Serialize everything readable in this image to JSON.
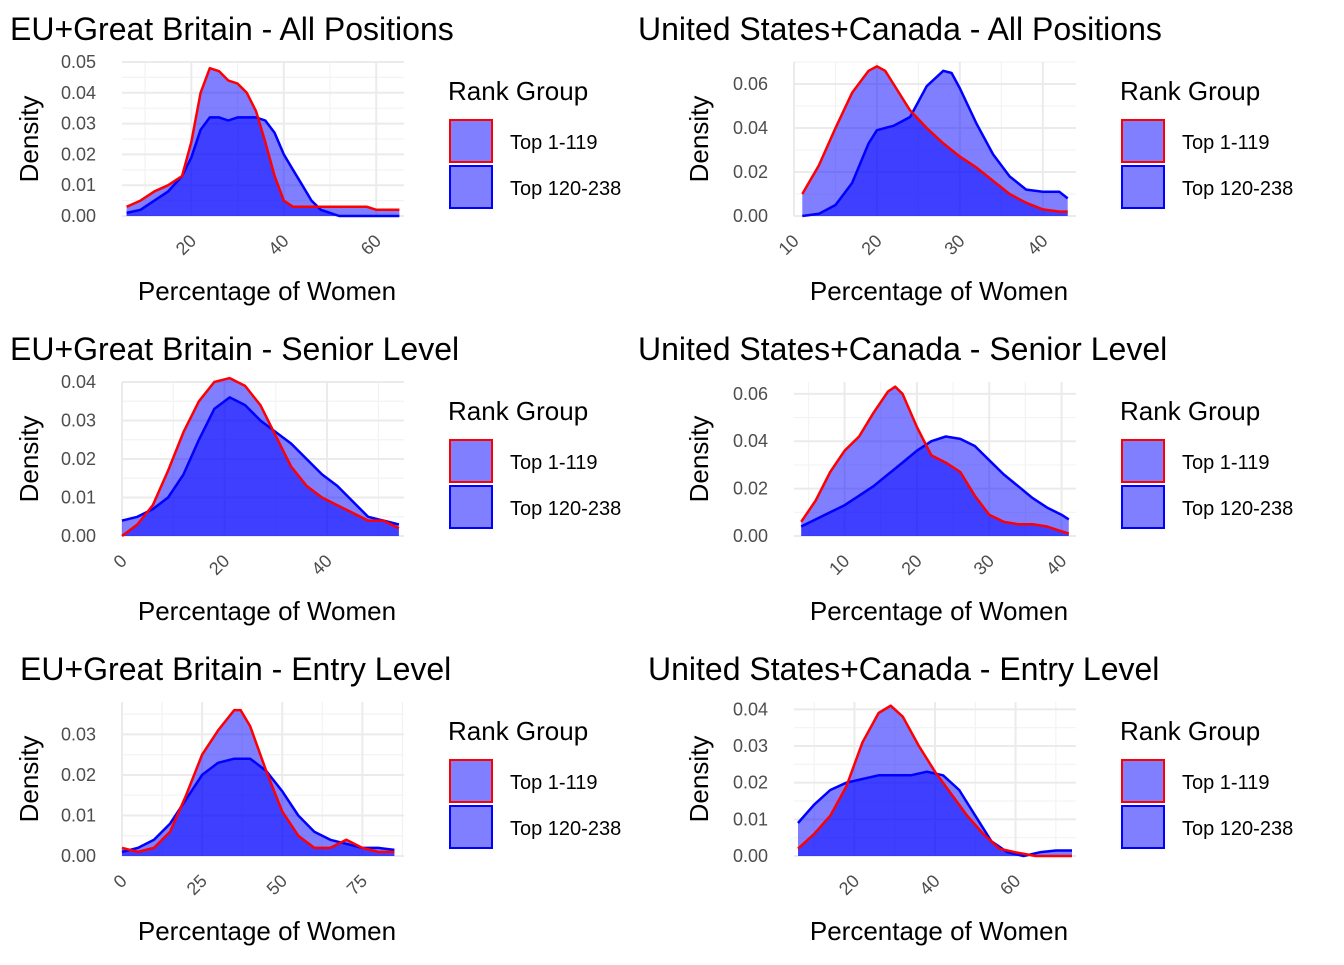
{
  "colors": {
    "top1": "#ff0000",
    "top2": "#0000ff",
    "fill": "#0000ff",
    "grid": "#ebebeb"
  },
  "chart_data": [
    {
      "type": "area",
      "title": "EU+Great Britain - All Positions",
      "xlabel": "Percentage of Women",
      "ylabel": "Density",
      "xlim": [
        5,
        66
      ],
      "ylim": [
        0,
        0.05
      ],
      "xticks": [
        20,
        40,
        60
      ],
      "yticks": [
        0,
        0.01,
        0.02,
        0.03,
        0.04,
        0.05
      ],
      "xtick_labels": [
        "20",
        "40",
        "60"
      ],
      "ytick_labels": [
        "0.00",
        "0.01",
        "0.02",
        "0.03",
        "0.04",
        "0.05"
      ],
      "legend_title": "Rank Group",
      "series": [
        {
          "name": "Top 1-119",
          "x": [
            6,
            9,
            12,
            15,
            18,
            20,
            22,
            24,
            26,
            28,
            30,
            32,
            34,
            36,
            38,
            40,
            42,
            44,
            46,
            48,
            50,
            52,
            55,
            58,
            60,
            62,
            64,
            65
          ],
          "y": [
            0.003,
            0.005,
            0.008,
            0.01,
            0.013,
            0.024,
            0.04,
            0.048,
            0.047,
            0.044,
            0.043,
            0.04,
            0.034,
            0.024,
            0.013,
            0.005,
            0.003,
            0.003,
            0.003,
            0.003,
            0.003,
            0.003,
            0.003,
            0.003,
            0.002,
            0.002,
            0.002,
            0.002
          ]
        },
        {
          "name": "Top 120-238",
          "x": [
            6,
            9,
            12,
            15,
            18,
            20,
            22,
            24,
            26,
            28,
            30,
            32,
            34,
            36,
            38,
            40,
            42,
            44,
            46,
            48,
            50,
            52,
            55,
            58,
            60,
            62,
            64,
            65
          ],
          "y": [
            0.001,
            0.002,
            0.005,
            0.008,
            0.013,
            0.019,
            0.028,
            0.032,
            0.032,
            0.031,
            0.032,
            0.032,
            0.032,
            0.031,
            0.027,
            0.02,
            0.015,
            0.01,
            0.005,
            0.002,
            0.001,
            0.0,
            0.0,
            0.0,
            0.0,
            0.0,
            0.0,
            0.0
          ]
        }
      ]
    },
    {
      "type": "area",
      "title": "United States+Canada - All Positions",
      "xlabel": "Percentage of Women",
      "ylabel": "Density",
      "xlim": [
        10,
        44
      ],
      "ylim": [
        0,
        0.07
      ],
      "xticks": [
        10,
        20,
        30,
        40
      ],
      "yticks": [
        0,
        0.02,
        0.04,
        0.06
      ],
      "xtick_labels": [
        "10",
        "20",
        "30",
        "40"
      ],
      "ytick_labels": [
        "0.00",
        "0.02",
        "0.04",
        "0.06"
      ],
      "legend_title": "Rank Group",
      "series": [
        {
          "name": "Top 1-119",
          "x": [
            11,
            13,
            15,
            17,
            19,
            20,
            21,
            22,
            24,
            26,
            28,
            30,
            32,
            34,
            36,
            38,
            40,
            42,
            43
          ],
          "y": [
            0.01,
            0.023,
            0.04,
            0.056,
            0.066,
            0.068,
            0.066,
            0.06,
            0.048,
            0.04,
            0.033,
            0.027,
            0.022,
            0.016,
            0.01,
            0.006,
            0.003,
            0.002,
            0.002
          ]
        },
        {
          "name": "Top 120-238",
          "x": [
            11,
            13,
            15,
            17,
            19,
            20,
            22,
            24,
            26,
            28,
            29,
            30,
            32,
            34,
            36,
            38,
            40,
            42,
            43
          ],
          "y": [
            0.0,
            0.001,
            0.005,
            0.015,
            0.033,
            0.039,
            0.041,
            0.045,
            0.059,
            0.066,
            0.065,
            0.058,
            0.042,
            0.028,
            0.018,
            0.012,
            0.011,
            0.011,
            0.008
          ]
        }
      ]
    },
    {
      "type": "area",
      "title": "EU+Great Britain - Senior Level",
      "xlabel": "Percentage of Women",
      "ylabel": "Density",
      "xlim": [
        0,
        55
      ],
      "ylim": [
        0,
        0.04
      ],
      "xticks": [
        0,
        20,
        40
      ],
      "yticks": [
        0,
        0.01,
        0.02,
        0.03,
        0.04
      ],
      "xtick_labels": [
        "0",
        "20",
        "40"
      ],
      "ytick_labels": [
        "0.00",
        "0.01",
        "0.02",
        "0.03",
        "0.04"
      ],
      "legend_title": "Rank Group",
      "series": [
        {
          "name": "Top 1-119",
          "x": [
            0,
            3,
            6,
            9,
            12,
            15,
            18,
            21,
            24,
            27,
            30,
            33,
            36,
            39,
            42,
            45,
            48,
            51,
            54
          ],
          "y": [
            0.0,
            0.003,
            0.008,
            0.017,
            0.027,
            0.035,
            0.04,
            0.041,
            0.039,
            0.034,
            0.026,
            0.018,
            0.013,
            0.01,
            0.008,
            0.006,
            0.004,
            0.004,
            0.002
          ]
        },
        {
          "name": "Top 120-238",
          "x": [
            0,
            3,
            6,
            9,
            12,
            15,
            18,
            21,
            24,
            27,
            30,
            33,
            36,
            39,
            42,
            45,
            48,
            51,
            54
          ],
          "y": [
            0.004,
            0.005,
            0.007,
            0.01,
            0.016,
            0.025,
            0.033,
            0.036,
            0.034,
            0.03,
            0.027,
            0.024,
            0.02,
            0.016,
            0.013,
            0.009,
            0.005,
            0.004,
            0.003
          ]
        }
      ]
    },
    {
      "type": "area",
      "title": "United States+Canada - Senior Level",
      "xlabel": "Percentage of Women",
      "ylabel": "Density",
      "xlim": [
        3,
        42
      ],
      "ylim": [
        0,
        0.065
      ],
      "xticks": [
        10,
        20,
        30,
        40
      ],
      "yticks": [
        0,
        0.02,
        0.04,
        0.06
      ],
      "xtick_labels": [
        "10",
        "20",
        "30",
        "40"
      ],
      "ytick_labels": [
        "0.00",
        "0.02",
        "0.04",
        "0.06"
      ],
      "legend_title": "Rank Group",
      "series": [
        {
          "name": "Top 1-119",
          "x": [
            4,
            6,
            8,
            10,
            12,
            14,
            16,
            17,
            18,
            20,
            22,
            24,
            26,
            28,
            30,
            32,
            34,
            36,
            38,
            40,
            41
          ],
          "y": [
            0.006,
            0.015,
            0.027,
            0.036,
            0.042,
            0.052,
            0.061,
            0.063,
            0.06,
            0.046,
            0.034,
            0.031,
            0.027,
            0.017,
            0.009,
            0.006,
            0.005,
            0.005,
            0.004,
            0.002,
            0.001
          ]
        },
        {
          "name": "Top 120-238",
          "x": [
            4,
            6,
            8,
            10,
            12,
            14,
            16,
            18,
            20,
            22,
            24,
            26,
            28,
            30,
            32,
            34,
            36,
            38,
            40,
            41
          ],
          "y": [
            0.004,
            0.007,
            0.01,
            0.013,
            0.017,
            0.021,
            0.026,
            0.031,
            0.036,
            0.04,
            0.042,
            0.041,
            0.038,
            0.032,
            0.026,
            0.021,
            0.016,
            0.012,
            0.009,
            0.007
          ]
        }
      ]
    },
    {
      "type": "area",
      "title": "EU+Great Britain - Entry Level",
      "xlabel": "Percentage of Women",
      "ylabel": "Density",
      "xlim": [
        0,
        88
      ],
      "ylim": [
        0,
        0.038
      ],
      "xticks": [
        0,
        25,
        50,
        75
      ],
      "yticks": [
        0,
        0.01,
        0.02,
        0.03
      ],
      "xtick_labels": [
        "0",
        "25",
        "50",
        "75"
      ],
      "ytick_labels": [
        "0.00",
        "0.01",
        "0.02",
        "0.03"
      ],
      "legend_title": "Rank Group",
      "series": [
        {
          "name": "Top 1-119",
          "x": [
            0,
            5,
            10,
            15,
            20,
            25,
            30,
            35,
            37,
            40,
            45,
            50,
            55,
            60,
            65,
            70,
            75,
            80,
            85
          ],
          "y": [
            0.002,
            0.001,
            0.002,
            0.006,
            0.015,
            0.025,
            0.031,
            0.036,
            0.036,
            0.032,
            0.021,
            0.011,
            0.005,
            0.002,
            0.002,
            0.004,
            0.002,
            0.001,
            0.001
          ]
        },
        {
          "name": "Top 120-238",
          "x": [
            0,
            5,
            10,
            15,
            20,
            25,
            30,
            35,
            40,
            45,
            50,
            55,
            60,
            65,
            70,
            75,
            80,
            85
          ],
          "y": [
            0.001,
            0.002,
            0.004,
            0.008,
            0.014,
            0.02,
            0.023,
            0.024,
            0.024,
            0.021,
            0.016,
            0.01,
            0.006,
            0.004,
            0.003,
            0.002,
            0.002,
            0.0015
          ]
        }
      ]
    },
    {
      "type": "area",
      "title": "United States+Canada - Entry Level",
      "xlabel": "Percentage of Women",
      "ylabel": "Density",
      "xlim": [
        5,
        75
      ],
      "ylim": [
        0,
        0.042
      ],
      "xticks": [
        20,
        40,
        60
      ],
      "yticks": [
        0,
        0.01,
        0.02,
        0.03,
        0.04
      ],
      "xtick_labels": [
        "20",
        "40",
        "60"
      ],
      "ytick_labels": [
        "0.00",
        "0.01",
        "0.02",
        "0.03",
        "0.04"
      ],
      "legend_title": "Rank Group",
      "series": [
        {
          "name": "Top 1-119",
          "x": [
            6,
            10,
            14,
            18,
            22,
            26,
            29,
            32,
            36,
            40,
            44,
            48,
            52,
            56,
            60,
            65,
            70,
            74
          ],
          "y": [
            0.002,
            0.006,
            0.011,
            0.019,
            0.031,
            0.039,
            0.041,
            0.038,
            0.03,
            0.023,
            0.017,
            0.011,
            0.006,
            0.002,
            0.001,
            0.0,
            0.0,
            0.0
          ]
        },
        {
          "name": "Top 120-238",
          "x": [
            6,
            10,
            14,
            18,
            22,
            26,
            30,
            34,
            38,
            42,
            46,
            50,
            54,
            58,
            62,
            66,
            70,
            74
          ],
          "y": [
            0.009,
            0.014,
            0.018,
            0.02,
            0.021,
            0.022,
            0.022,
            0.022,
            0.023,
            0.022,
            0.018,
            0.011,
            0.004,
            0.001,
            0.0,
            0.001,
            0.0015,
            0.0015
          ]
        }
      ]
    }
  ]
}
